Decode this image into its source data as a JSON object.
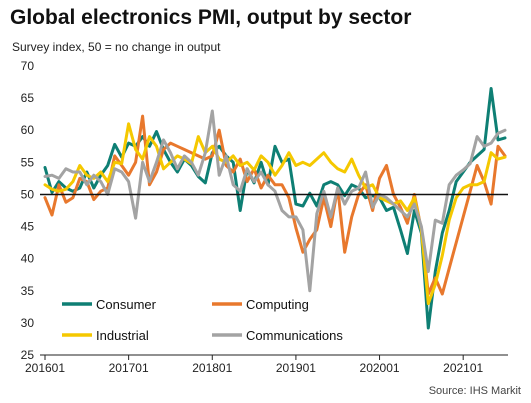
{
  "title": "Global electronics PMI, output by sector",
  "subtitle": "Survey index, 50 = no change in output",
  "source": "Source: IHS Markit",
  "chart_data": {
    "type": "line",
    "ylim": [
      25,
      70
    ],
    "yticks": [
      25,
      30,
      35,
      40,
      45,
      50,
      55,
      60,
      65,
      70
    ],
    "x_tick_labels": [
      "201601",
      "201701",
      "201801",
      "201901",
      "202001",
      "202101"
    ],
    "reference_line": 50,
    "legend_position": "bottom-left",
    "grid": false,
    "x_start": "2016-01",
    "series": [
      {
        "name": "Consumer",
        "color": "#0e7f74",
        "values": [
          54.2,
          50.3,
          52.0,
          51.0,
          50.5,
          51.0,
          53.5,
          51.0,
          53.0,
          54.5,
          57.8,
          55.8,
          58.0,
          57.5,
          59.0,
          57.5,
          59.8,
          57.0,
          55.0,
          53.5,
          55.5,
          54.5,
          52.8,
          51.8,
          56.5,
          57.5,
          56.0,
          55.0,
          47.5,
          54.0,
          51.8,
          55.0,
          51.5,
          57.5,
          55.0,
          55.5,
          48.5,
          48.2,
          50.2,
          48.2,
          51.5,
          52.0,
          51.5,
          49.8,
          51.5,
          51.0,
          49.5,
          49.8,
          49.5,
          47.5,
          48.0,
          44.5,
          40.8,
          47.5,
          44.0,
          29.2,
          38.0,
          44.0,
          47.5,
          52.0,
          53.5,
          55.0,
          56.0,
          57.0,
          66.5,
          58.5,
          58.8
        ]
      },
      {
        "name": "Computing",
        "color": "#e8782d",
        "values": [
          49.5,
          46.8,
          51.5,
          48.8,
          49.5,
          52.5,
          52.0,
          49.2,
          50.5,
          51.0,
          56.0,
          54.5,
          53.0,
          55.0,
          62.2,
          51.5,
          53.5,
          57.0,
          58.0,
          57.5,
          57.0,
          56.5,
          56.0,
          55.5,
          56.0,
          60.0,
          54.5,
          53.5,
          55.5,
          52.0,
          54.0,
          51.0,
          53.0,
          51.5,
          51.5,
          49.5,
          44.8,
          41.0,
          43.0,
          44.5,
          49.5,
          45.0,
          51.0,
          41.0,
          46.5,
          50.0,
          51.5,
          47.5,
          52.5,
          54.5,
          50.0,
          48.0,
          45.5,
          50.0,
          44.5,
          34.5,
          37.0,
          34.5,
          38.5,
          42.5,
          46.5,
          50.5,
          54.5,
          52.0,
          48.5,
          57.5,
          56.0
        ]
      },
      {
        "name": "Industrial",
        "color": "#f5c800",
        "values": [
          51.5,
          50.8,
          50.5,
          50.8,
          52.0,
          54.5,
          53.0,
          52.5,
          53.5,
          52.0,
          55.0,
          54.8,
          61.0,
          57.0,
          55.5,
          59.0,
          57.5,
          54.0,
          55.0,
          56.0,
          55.5,
          54.8,
          59.0,
          56.5,
          57.5,
          55.5,
          55.0,
          56.0,
          54.5,
          55.0,
          53.8,
          56.0,
          55.0,
          53.0,
          54.5,
          56.5,
          54.5,
          55.0,
          54.5,
          55.5,
          56.5,
          55.0,
          54.0,
          53.5,
          55.5,
          53.0,
          51.0,
          51.5,
          49.5,
          49.0,
          48.5,
          49.0,
          47.5,
          49.5,
          44.5,
          33.0,
          36.0,
          40.5,
          46.0,
          49.5,
          51.0,
          51.5,
          51.5,
          52.0,
          56.5,
          55.5,
          55.8
        ]
      },
      {
        "name": "Communications",
        "color": "#a3a3a3",
        "values": [
          52.8,
          53.0,
          52.5,
          54.0,
          53.5,
          53.5,
          51.5,
          53.0,
          52.0,
          50.0,
          54.0,
          53.5,
          52.0,
          46.3,
          55.0,
          52.0,
          55.0,
          58.5,
          56.5,
          54.0,
          56.0,
          55.0,
          53.0,
          56.5,
          63.0,
          53.0,
          56.0,
          51.5,
          50.5,
          54.0,
          52.0,
          53.5,
          51.5,
          50.5,
          47.5,
          46.5,
          46.5,
          44.5,
          35.0,
          47.0,
          50.5,
          46.5,
          51.0,
          48.5,
          50.5,
          51.0,
          53.5,
          48.0,
          50.0,
          49.5,
          48.5,
          47.5,
          46.5,
          48.5,
          45.0,
          38.0,
          46.0,
          45.5,
          51.5,
          53.0,
          53.8,
          54.8,
          59.0,
          57.5,
          58.0,
          59.5,
          60.0
        ]
      }
    ]
  }
}
